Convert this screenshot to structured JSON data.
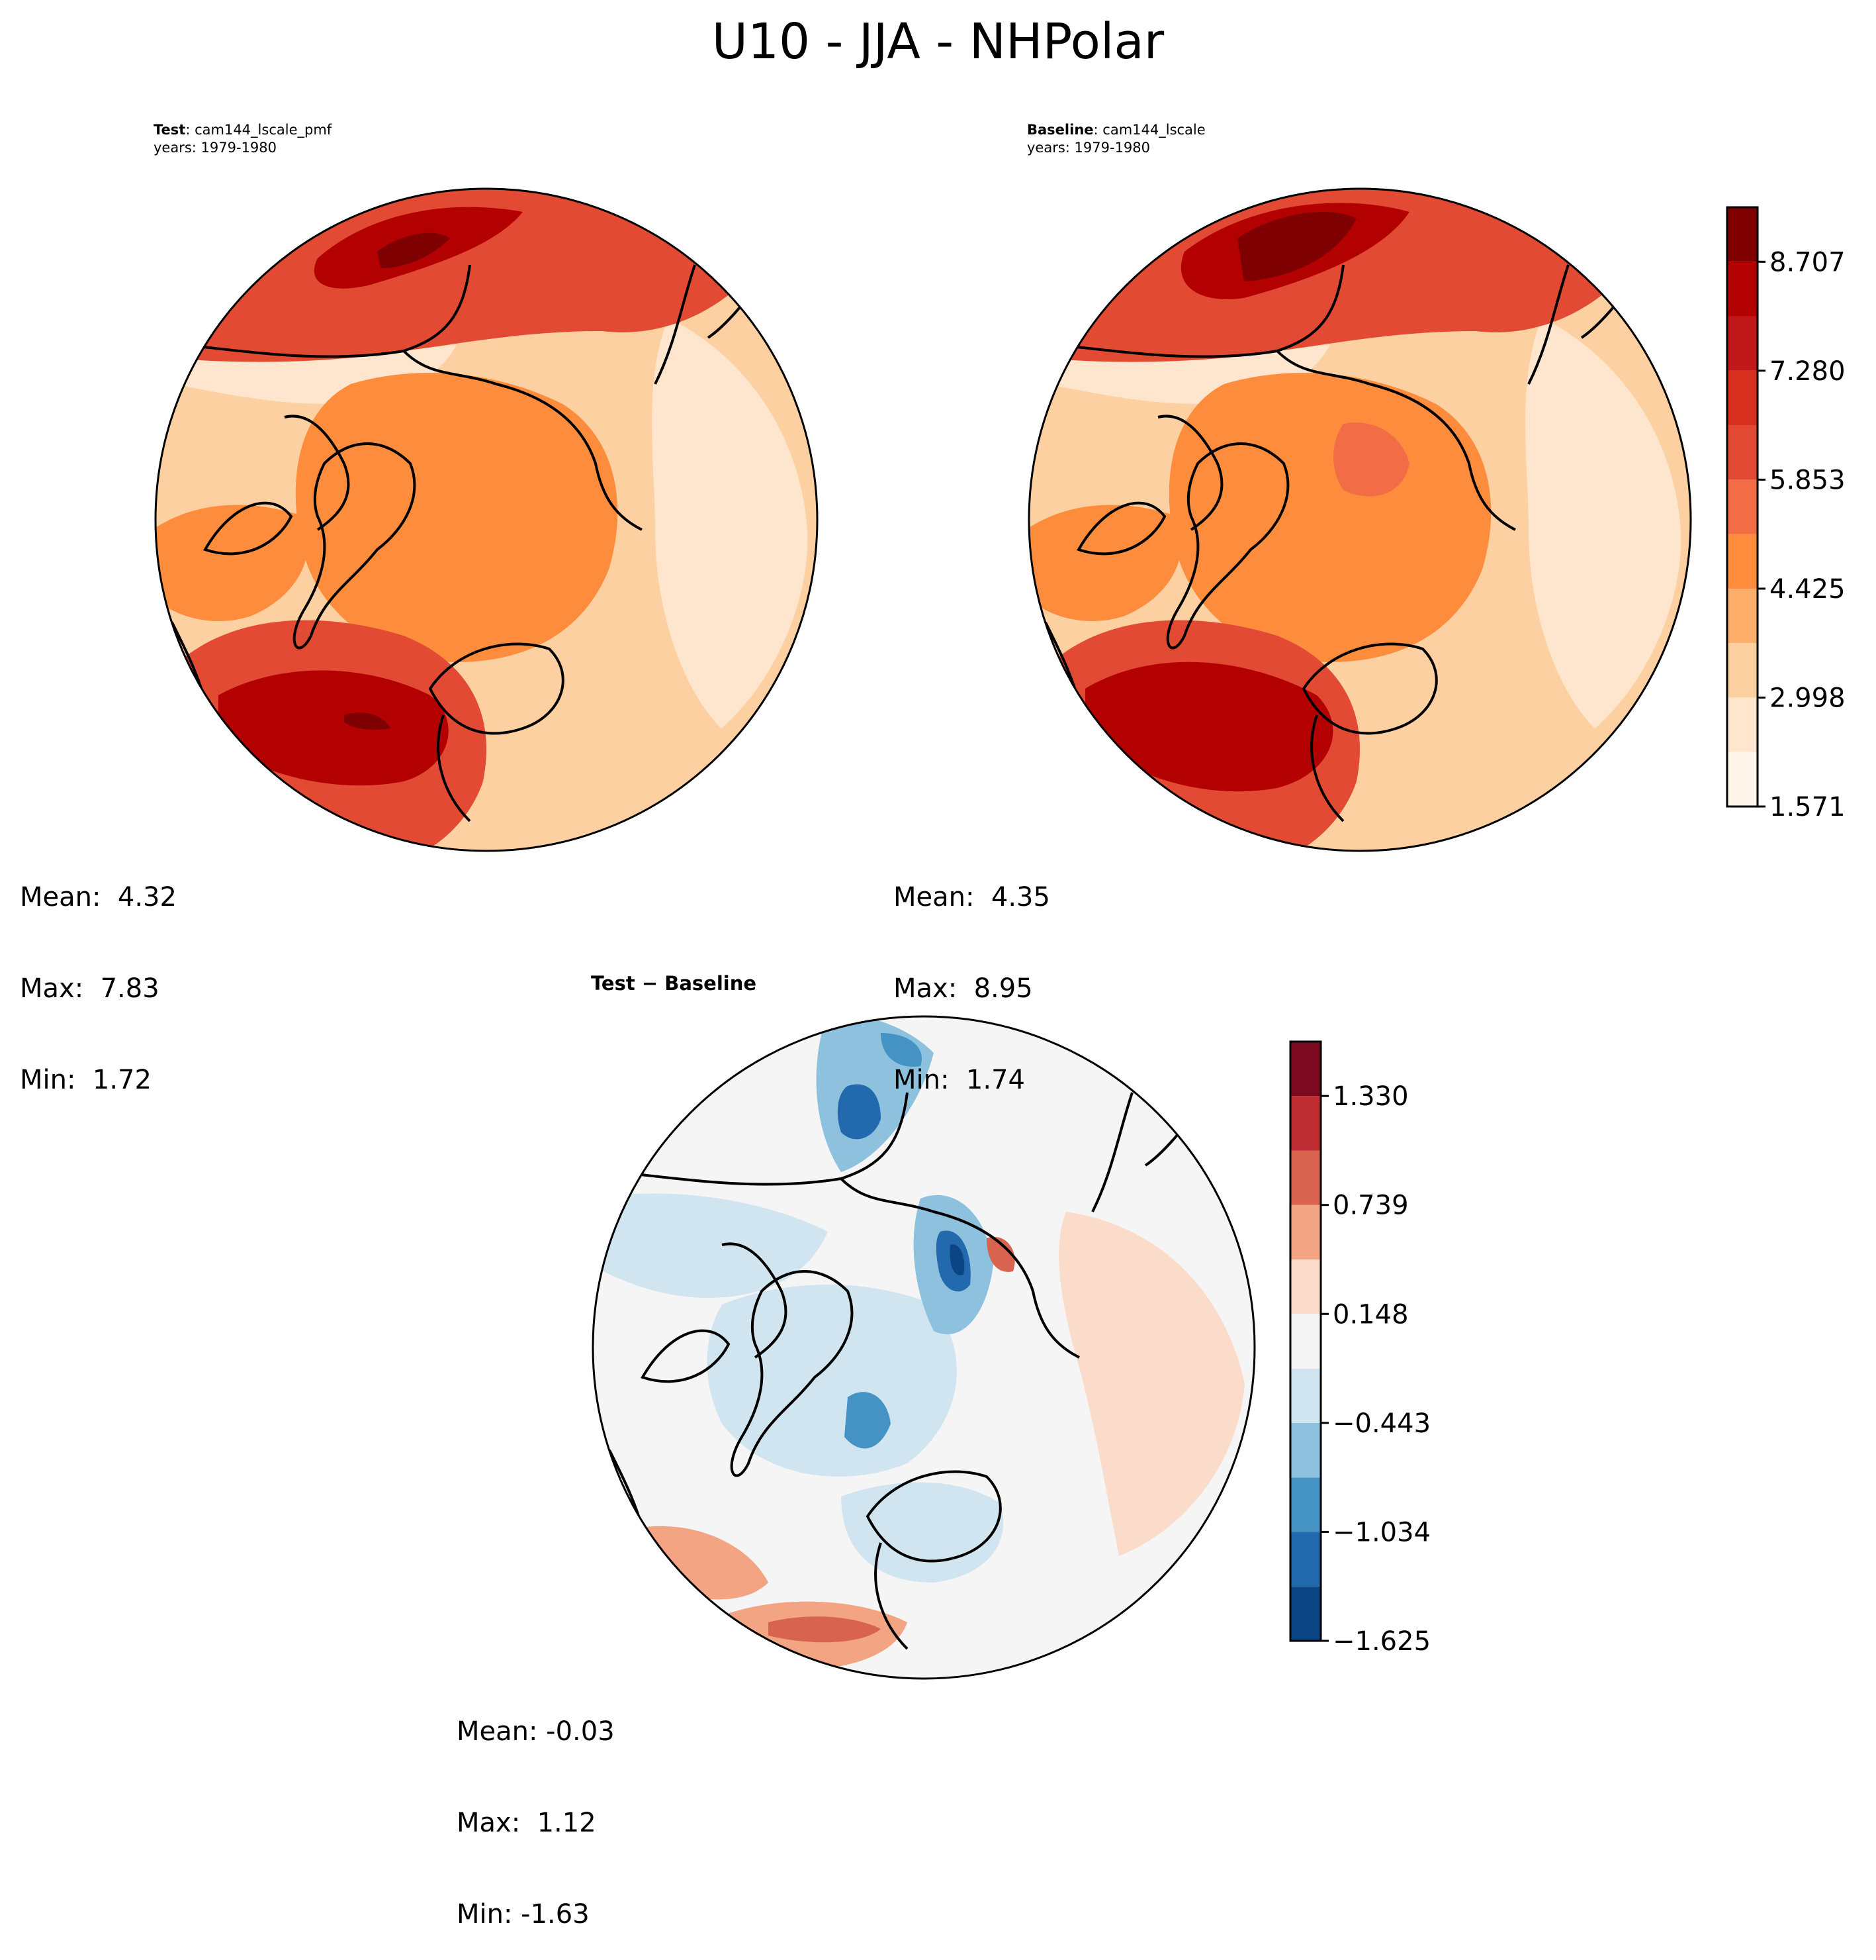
{
  "figure": {
    "title": "U10 - JJA - NHPolar"
  },
  "panels": {
    "test": {
      "label": "Test",
      "case": "cam144_lscale_pmf",
      "years": "years: 1979-1980",
      "stats": {
        "mean": "Mean:  4.32",
        "max": "Max:  7.83",
        "min": "Min:  1.72"
      }
    },
    "baseline": {
      "label": "Baseline",
      "case": "cam144_lscale",
      "years": "years: 1979-1980",
      "stats": {
        "mean": "Mean:  4.35",
        "max": "Max:  8.95",
        "min": "Min:  1.74"
      }
    },
    "diff": {
      "label": "Test − Baseline",
      "stats": {
        "mean": "Mean: -0.03",
        "max": "Max:  1.12",
        "min": "Min: -1.63"
      }
    }
  },
  "chart_data": [
    {
      "type": "heatmap",
      "projection": "north-polar-stereographic",
      "title": "Test: cam144_lscale_pmf",
      "subtitle": "years: 1979-1980",
      "mean": 4.32,
      "max": 7.83,
      "min": 1.72,
      "colormap": "Reds",
      "colorbar": "shared with baseline"
    },
    {
      "type": "heatmap",
      "projection": "north-polar-stereographic",
      "title": "Baseline: cam144_lscale",
      "subtitle": "years: 1979-1980",
      "mean": 4.35,
      "max": 8.95,
      "min": 1.74,
      "colormap": "Reds",
      "colorbar": {
        "levels": [
          1.571,
          2.285,
          2.998,
          3.712,
          4.425,
          5.139,
          5.853,
          6.567,
          7.28,
          7.994,
          8.707,
          9.421
        ],
        "tick_labels": [
          "1.571",
          "2.998",
          "4.425",
          "5.853",
          "7.280",
          "8.707"
        ],
        "colors": [
          "#fff5eb",
          "#fee6ce",
          "#fdd0a2",
          "#fdae6b",
          "#fd8d3c",
          "#f26d45",
          "#e34a33",
          "#d7301f",
          "#c01818",
          "#b30000",
          "#7f0000"
        ]
      }
    },
    {
      "type": "heatmap",
      "projection": "north-polar-stereographic",
      "title": "Test − Baseline",
      "mean": -0.03,
      "max": 1.12,
      "min": -1.63,
      "colormap": "RdBu_r",
      "colorbar": {
        "levels": [
          -1.625,
          -1.33,
          -1.034,
          -0.739,
          -0.443,
          -0.148,
          0.148,
          0.443,
          0.739,
          1.034,
          1.33,
          1.625
        ],
        "tick_labels": [
          "−1.625",
          "−1.034",
          "−0.443",
          "0.148",
          "0.739",
          "1.330"
        ],
        "colors": [
          "#0b4583",
          "#2369ad",
          "#4592c5",
          "#8ec1de",
          "#d1e5f0",
          "#f5f5f5",
          "#fbdccb",
          "#f3a482",
          "#d8644f",
          "#be2d31",
          "#7c0b21"
        ]
      }
    }
  ]
}
